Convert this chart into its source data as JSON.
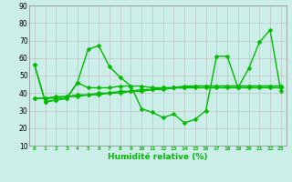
{
  "title": "",
  "xlabel": "Humidité relative (%)",
  "ylabel": "",
  "background_color": "#cceee8",
  "grid_color": "#bbbbbb",
  "line_color": "#00bb00",
  "xlim": [
    -0.5,
    23.5
  ],
  "ylim": [
    10,
    90
  ],
  "yticks": [
    10,
    20,
    30,
    40,
    50,
    60,
    70,
    80,
    90
  ],
  "xticks": [
    0,
    1,
    2,
    3,
    4,
    5,
    6,
    7,
    8,
    9,
    10,
    11,
    12,
    13,
    14,
    15,
    16,
    17,
    18,
    19,
    20,
    21,
    22,
    23
  ],
  "series": [
    [
      56,
      35,
      36,
      37,
      46,
      65,
      67,
      55,
      49,
      44,
      31,
      29,
      26,
      28,
      23,
      25,
      30,
      61,
      61,
      43,
      54,
      69,
      76,
      41
    ],
    [
      56,
      35,
      36,
      37,
      46,
      43,
      43,
      43,
      44,
      44,
      44,
      43,
      43,
      43,
      43,
      43,
      43,
      43,
      43,
      43,
      43,
      43,
      43,
      43
    ],
    [
      37,
      37,
      37,
      38,
      38,
      39,
      39,
      40,
      40,
      41,
      41,
      42,
      42,
      43,
      43,
      44,
      44,
      44,
      44,
      44,
      44,
      44,
      44,
      44
    ],
    [
      37,
      37,
      38,
      38,
      39,
      39,
      40,
      40,
      41,
      41,
      42,
      42,
      43,
      43,
      44,
      44,
      44,
      44,
      44,
      44,
      44,
      44,
      44,
      44
    ]
  ],
  "marker_size": 2.5,
  "linewidth": 1.0
}
